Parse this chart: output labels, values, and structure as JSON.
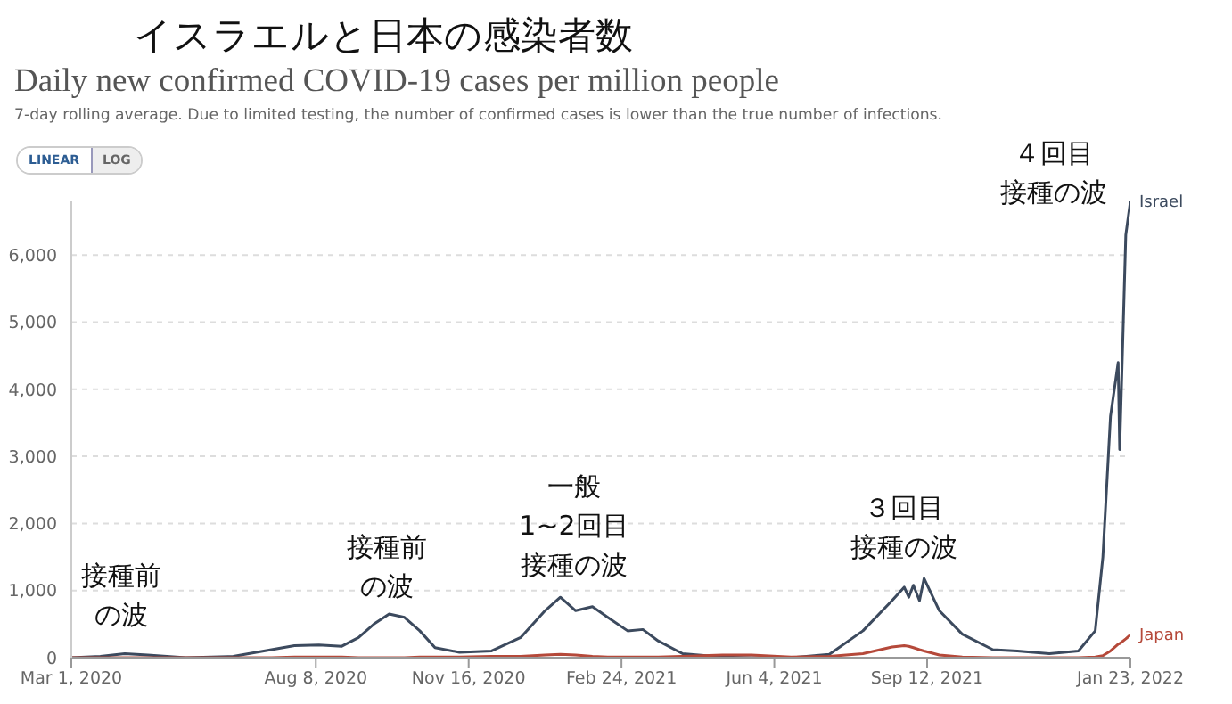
{
  "chart_data": {
    "type": "line",
    "title": "イスラエルと日本の感染者数",
    "subtitle": "Daily new confirmed COVID-19 cases per million people",
    "annotations": [
      "7-day rolling average. Due to limited testing, the number of confirmed cases is lower than the true number of infections.",
      "LINEAR",
      "LOG",
      "接種前の波",
      "接種前の波",
      "一般1~2回目接種の波",
      "３回目接種の波",
      "４回目接種の波"
    ],
    "x": [
      "2020-03-01",
      "2020-03-20",
      "2020-04-05",
      "2020-04-20",
      "2020-05-15",
      "2020-06-15",
      "2020-07-10",
      "2020-07-25",
      "2020-08-10",
      "2020-08-25",
      "2020-09-05",
      "2020-09-15",
      "2020-09-25",
      "2020-10-01",
      "2020-10-05",
      "2020-10-15",
      "2020-10-25",
      "2020-11-10",
      "2020-12-01",
      "2020-12-20",
      "2021-01-05",
      "2021-01-15",
      "2021-01-25",
      "2021-02-05",
      "2021-02-15",
      "2021-02-28",
      "2021-03-10",
      "2021-03-20",
      "2021-04-05",
      "2021-05-01",
      "2021-05-20",
      "2021-06-15",
      "2021-07-10",
      "2021-08-01",
      "2021-08-20",
      "2021-08-28",
      "2021-08-31",
      "2021-09-03",
      "2021-09-07",
      "2021-09-10",
      "2021-09-20",
      "2021-10-05",
      "2021-10-25",
      "2021-11-10",
      "2021-12-01",
      "2021-12-20",
      "2021-12-31",
      "2022-01-05",
      "2022-01-10",
      "2022-01-15",
      "2022-01-16",
      "2022-01-20",
      "2022-01-23"
    ],
    "series": [
      {
        "name": "Israel",
        "color": "#3c4a5e",
        "values": [
          0,
          20,
          60,
          40,
          0,
          20,
          120,
          180,
          190,
          170,
          300,
          500,
          650,
          620,
          600,
          400,
          150,
          80,
          100,
          300,
          700,
          900,
          700,
          760,
          600,
          400,
          420,
          250,
          60,
          10,
          0,
          0,
          50,
          400,
          850,
          1050,
          900,
          1080,
          850,
          1180,
          700,
          350,
          120,
          100,
          60,
          100,
          400,
          1500,
          3600,
          4400,
          3100,
          6300,
          6800
        ]
      },
      {
        "name": "Japan",
        "color": "#b5493a",
        "values": [
          0,
          0,
          0,
          0,
          0,
          0,
          0,
          10,
          10,
          10,
          0,
          0,
          0,
          0,
          0,
          10,
          10,
          10,
          20,
          20,
          40,
          50,
          40,
          20,
          10,
          10,
          10,
          10,
          20,
          40,
          40,
          10,
          20,
          60,
          160,
          180,
          170,
          150,
          120,
          100,
          40,
          10,
          0,
          0,
          0,
          0,
          10,
          30,
          100,
          200,
          210,
          280,
          340
        ]
      }
    ],
    "xlim": [
      "2020-03-01",
      "2022-01-23"
    ],
    "xticks": [
      {
        "value": "2020-03-01",
        "label": "Mar 1, 2020"
      },
      {
        "value": "2020-08-08",
        "label": "Aug 8, 2020"
      },
      {
        "value": "2020-11-16",
        "label": "Nov 16, 2020"
      },
      {
        "value": "2021-02-24",
        "label": "Feb 24, 2021"
      },
      {
        "value": "2021-06-04",
        "label": "Jun 4, 2021"
      },
      {
        "value": "2021-09-12",
        "label": "Sep 12, 2021"
      },
      {
        "value": "2022-01-23",
        "label": "Jan 23, 2022"
      }
    ],
    "ylim": [
      0,
      6800
    ],
    "yticks": [
      0,
      {
        "value": 1000,
        "label": "1,000"
      },
      {
        "value": 2000,
        "label": "2,000"
      },
      {
        "value": 3000,
        "label": "3,000"
      },
      {
        "value": 4000,
        "label": "4,000"
      },
      {
        "value": 5000,
        "label": "5,000"
      },
      {
        "value": 6000,
        "label": "6,000"
      }
    ],
    "grid": "y",
    "marker": "none",
    "line_style": "solid"
  }
}
